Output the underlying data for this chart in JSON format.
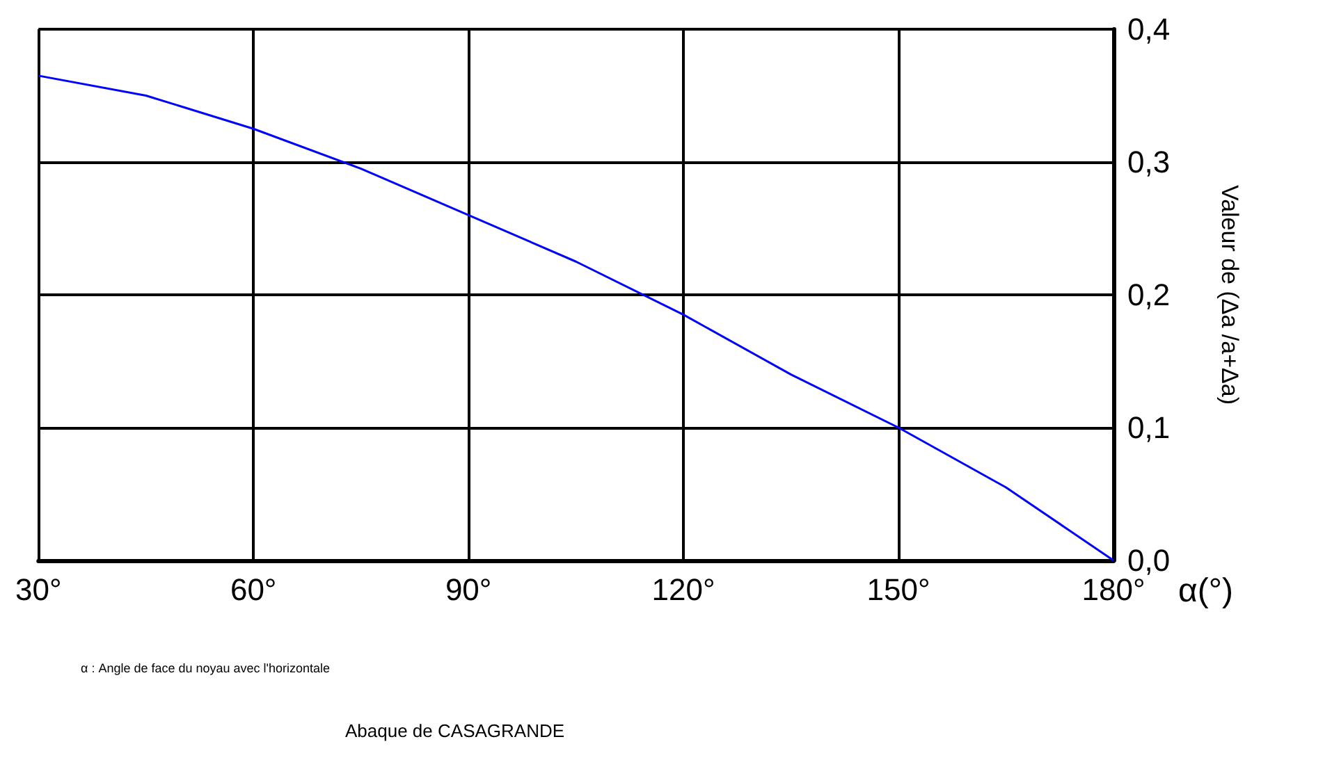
{
  "chart_data": {
    "type": "line",
    "title": "Abaque de CASAGRANDE",
    "xlabel": "α(°)",
    "ylabel": "Valeur de (Δa /a+Δa)",
    "annotations": [
      "α : Angle de face du noyau avec l'horizontale"
    ],
    "x": [
      30,
      45,
      60,
      75,
      90,
      105,
      120,
      135,
      150,
      165,
      180
    ],
    "series": [
      {
        "color": "#0000ff",
        "values": [
          0.365,
          0.35,
          0.325,
          0.295,
          0.26,
          0.225,
          0.185,
          0.14,
          0.1,
          0.055,
          0
        ]
      }
    ],
    "xlim": [
      30,
      180
    ],
    "xticks": [
      {
        "value": 30,
        "label": "30°"
      },
      {
        "value": 60,
        "label": "60°"
      },
      {
        "value": 90,
        "label": "90°"
      },
      {
        "value": 120,
        "label": "120°"
      },
      {
        "value": 150,
        "label": "150°"
      },
      {
        "value": 180,
        "label": "180°"
      }
    ],
    "ylim": [
      0,
      0.4
    ],
    "yticks": [
      {
        "value": 0,
        "label": "0,0"
      },
      {
        "value": 0.1,
        "label": "0,1"
      },
      {
        "value": 0.2,
        "label": "0,2"
      },
      {
        "value": 0.3,
        "label": "0,3"
      },
      {
        "value": 0.4,
        "label": "0,4"
      }
    ],
    "grid": true,
    "marker": "none",
    "line_style": "solid"
  }
}
